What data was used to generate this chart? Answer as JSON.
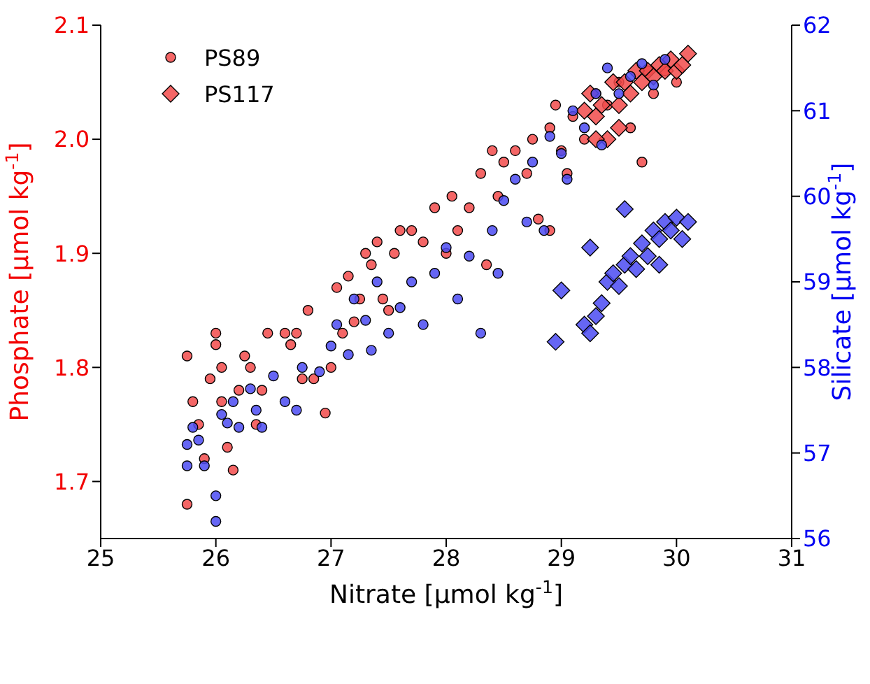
{
  "chart_data": {
    "type": "scatter",
    "xlabel": "Nitrate [μmol kg$^{-1}$]",
    "ylabel": "Phosphate [μmol kg$^{-1}$]",
    "y2label": "Silicate [μmol kg$^{-1}$]",
    "xlim": [
      25,
      31
    ],
    "xticks": [
      25,
      26,
      27,
      28,
      29,
      30,
      31
    ],
    "ylim": [
      1.65,
      2.1
    ],
    "yticks": [
      1.7,
      1.8,
      1.9,
      {
        "value": 2.0,
        "label": "2.0"
      },
      2.1
    ],
    "y2lim": [
      56,
      62
    ],
    "y2ticks": [
      56,
      57,
      58,
      59,
      60,
      61,
      62
    ],
    "legend": "top left",
    "grid": false,
    "series": [
      {
        "name": "PS89",
        "color": "#f24b4b",
        "marker": "circle",
        "x": [
          25.75,
          25.75,
          25.8,
          25.85,
          25.9,
          25.95,
          26.0,
          26.0,
          26.05,
          26.05,
          26.1,
          26.15,
          26.2,
          26.25,
          26.3,
          26.35,
          26.4,
          26.45,
          26.6,
          26.65,
          26.7,
          26.75,
          26.8,
          26.85,
          26.95,
          27.0,
          27.05,
          27.1,
          27.15,
          27.2,
          27.25,
          27.3,
          27.35,
          27.4,
          27.45,
          27.5,
          27.55,
          27.6,
          27.7,
          27.8,
          27.9,
          28.0,
          28.05,
          28.1,
          28.2,
          28.3,
          28.35,
          28.4,
          28.45,
          28.5,
          28.6,
          28.7,
          28.75,
          28.8,
          28.9,
          28.9,
          28.95,
          29.0,
          29.05,
          29.1,
          29.2,
          29.3,
          29.4,
          29.5,
          29.6,
          29.7,
          29.75,
          29.8,
          29.9,
          30.0
        ],
        "values": [
          1.81,
          1.68,
          1.77,
          1.75,
          1.72,
          1.79,
          1.83,
          1.82,
          1.77,
          1.8,
          1.73,
          1.71,
          1.78,
          1.81,
          1.8,
          1.75,
          1.78,
          1.83,
          1.83,
          1.82,
          1.83,
          1.79,
          1.85,
          1.79,
          1.76,
          1.8,
          1.87,
          1.83,
          1.88,
          1.84,
          1.86,
          1.9,
          1.89,
          1.91,
          1.86,
          1.85,
          1.9,
          1.92,
          1.92,
          1.91,
          1.94,
          1.9,
          1.95,
          1.92,
          1.94,
          1.97,
          1.89,
          1.99,
          1.95,
          1.98,
          1.99,
          1.97,
          2.0,
          1.93,
          2.01,
          1.92,
          2.03,
          1.99,
          1.97,
          2.02,
          2.0,
          2.04,
          2.03,
          2.05,
          2.01,
          1.98,
          2.06,
          2.04,
          2.06,
          2.05
        ]
      },
      {
        "name": "PS117",
        "color": "#f24b4b",
        "marker": "diamond",
        "x": [
          29.2,
          29.25,
          29.3,
          29.35,
          29.4,
          29.45,
          29.5,
          29.55,
          29.6,
          29.65,
          29.7,
          29.75,
          29.8,
          29.85,
          29.9,
          29.95,
          30.0,
          30.05,
          30.1,
          29.5,
          29.3
        ],
        "values": [
          2.025,
          2.04,
          2.02,
          2.03,
          2.0,
          2.05,
          2.03,
          2.05,
          2.04,
          2.06,
          2.05,
          2.06,
          2.055,
          2.065,
          2.06,
          2.07,
          2.06,
          2.065,
          2.075,
          2.01,
          2.0
        ]
      },
      {
        "color": "#4b4bf2",
        "marker": "circle",
        "axis": "y2",
        "x": [
          25.75,
          25.75,
          25.8,
          25.85,
          25.9,
          26.0,
          26.0,
          26.05,
          26.1,
          26.15,
          26.2,
          26.3,
          26.35,
          26.4,
          26.5,
          26.6,
          26.7,
          26.75,
          26.9,
          27.0,
          27.05,
          27.15,
          27.2,
          27.3,
          27.35,
          27.4,
          27.5,
          27.6,
          27.7,
          27.8,
          27.9,
          28.0,
          28.1,
          28.2,
          28.3,
          28.4,
          28.45,
          28.5,
          28.6,
          28.7,
          28.75,
          28.85,
          28.9,
          29.0,
          29.05,
          29.1,
          29.2,
          29.3,
          29.35,
          29.4,
          29.5,
          29.6,
          29.7,
          29.8,
          29.9
        ],
        "values": [
          57.1,
          56.85,
          57.3,
          57.15,
          56.85,
          56.2,
          56.5,
          57.45,
          57.35,
          57.6,
          57.3,
          57.75,
          57.5,
          57.3,
          57.9,
          57.6,
          57.5,
          58.0,
          57.95,
          58.25,
          58.5,
          58.15,
          58.8,
          58.55,
          58.2,
          59.0,
          58.4,
          58.7,
          59.0,
          58.5,
          59.1,
          59.4,
          58.8,
          59.3,
          58.4,
          59.6,
          59.1,
          59.95,
          60.2,
          59.7,
          60.4,
          59.6,
          60.7,
          60.5,
          60.2,
          61.0,
          60.8,
          61.2,
          60.6,
          61.5,
          61.2,
          61.4,
          61.55,
          61.3,
          61.6
        ]
      },
      {
        "color": "#4b4bf2",
        "marker": "diamond",
        "axis": "y2",
        "x": [
          28.95,
          29.0,
          29.2,
          29.25,
          29.3,
          29.35,
          29.25,
          29.4,
          29.45,
          29.5,
          29.55,
          29.6,
          29.65,
          29.7,
          29.75,
          29.8,
          29.85,
          29.9,
          29.95,
          30.0,
          30.05,
          30.1,
          29.55,
          29.85
        ],
        "values": [
          58.3,
          58.9,
          58.5,
          58.4,
          58.6,
          58.75,
          59.4,
          59.0,
          59.1,
          58.95,
          59.2,
          59.3,
          59.15,
          59.45,
          59.3,
          59.6,
          59.5,
          59.7,
          59.6,
          59.75,
          59.5,
          59.7,
          59.85,
          59.2
        ]
      }
    ]
  }
}
